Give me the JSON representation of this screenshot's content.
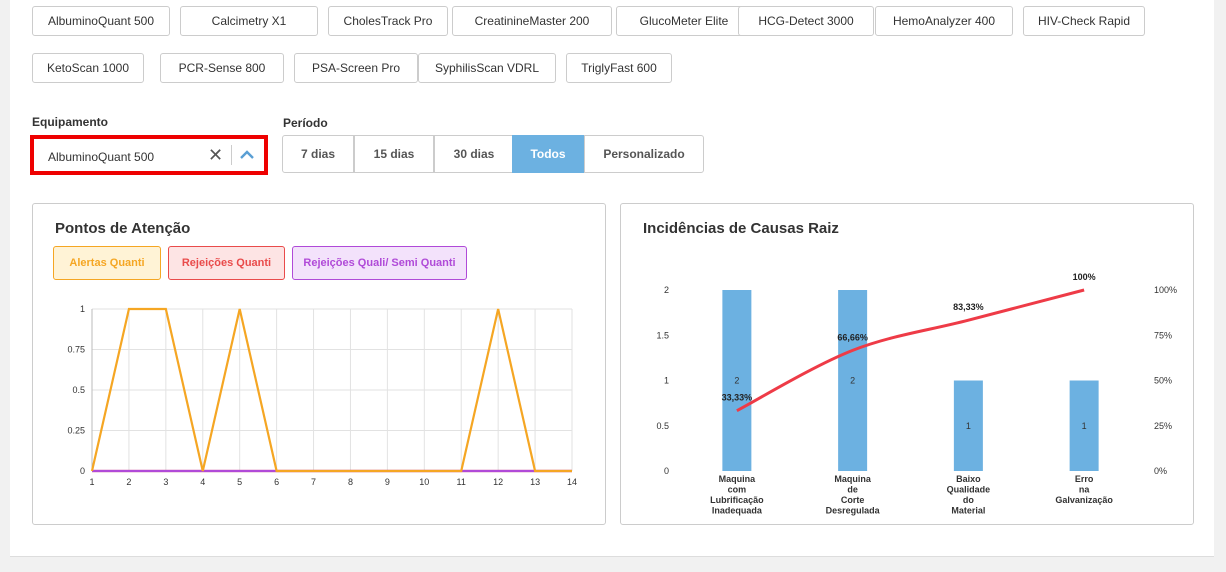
{
  "equipment_chips": [
    "AlbuminoQuant 500",
    "Calcimetry X1",
    "CholesTrack Pro",
    "CreatinineMaster 200",
    "GlucoMeter Elite",
    "HCG-Detect 3000",
    "HemoAnalyzer 400",
    "HIV-Check Rapid",
    "KetoScan 1000",
    "PCR-Sense 800",
    "PSA-Screen Pro",
    "SyphilisScan VDRL",
    "TriglyFast 600"
  ],
  "filters": {
    "equipment_label": "Equipamento",
    "equipment_selected": "AlbuminoQuant 500",
    "period_label": "Período",
    "periods": [
      "7 dias",
      "15 dias",
      "30 dias",
      "Todos",
      "Personalizado"
    ],
    "active_period": "Todos"
  },
  "attention_panel": {
    "title": "Pontos de Atenção",
    "legend": [
      {
        "label": "Alertas Quanti",
        "color": "#f5a623"
      },
      {
        "label": "Rejeições Quanti",
        "color": "#e94b4b"
      },
      {
        "label": "Rejeições Quali/ Semi Quanti",
        "color": "#b04ad8"
      }
    ]
  },
  "causes_panel": {
    "title": "Incidências de Causas Raiz"
  },
  "chart_data": [
    {
      "type": "line",
      "x": [
        1,
        2,
        3,
        4,
        5,
        6,
        7,
        8,
        9,
        10,
        11,
        12,
        13,
        14
      ],
      "series": [
        {
          "name": "Alertas Quanti",
          "color": "#f5a623",
          "values": [
            0,
            1,
            1,
            0,
            1,
            0,
            0,
            0,
            0,
            0,
            0,
            1,
            0,
            0
          ]
        },
        {
          "name": "Rejeições Quanti",
          "color": "#e94b4b",
          "values": [
            0,
            0,
            0,
            0,
            0,
            0,
            0,
            0,
            0,
            0,
            0,
            0,
            0,
            0
          ]
        },
        {
          "name": "Rejeições Quali/ Semi Quanti",
          "color": "#b04ad8",
          "values": [
            0,
            0,
            0,
            0,
            0,
            0,
            0,
            0,
            0,
            0,
            0,
            0,
            0,
            0
          ]
        }
      ],
      "y_ticks": [
        "0",
        "0.25",
        "0.5",
        "0.75",
        "1"
      ],
      "ylim": [
        0,
        1
      ],
      "grid": true
    },
    {
      "type": "bar",
      "categories": [
        [
          "Maquina",
          "com",
          "Lubrificação",
          "Inadequada"
        ],
        [
          "Maquina",
          "de",
          "Corte",
          "Desregulada"
        ],
        [
          "Baixo",
          "Qualidade",
          "do",
          "Material"
        ],
        [
          "Erro",
          "na",
          "Galvanização"
        ]
      ],
      "values": [
        2,
        2,
        1,
        1
      ],
      "bar_labels": [
        "2",
        "2",
        "1",
        "1"
      ],
      "bar_color": "#6cb1e1",
      "y_ticks": [
        "0",
        "0.5",
        "1",
        "1.5",
        "2"
      ],
      "ylim": [
        0,
        2
      ],
      "cumulative": {
        "color": "#ee3b47",
        "values": [
          33.33,
          66.66,
          83.33,
          100
        ],
        "labels": [
          "33,33%",
          "66,66%",
          "83,33%",
          "100%"
        ]
      },
      "y2_ticks": [
        "0%",
        "25%",
        "50%",
        "75%",
        "100%"
      ]
    }
  ]
}
